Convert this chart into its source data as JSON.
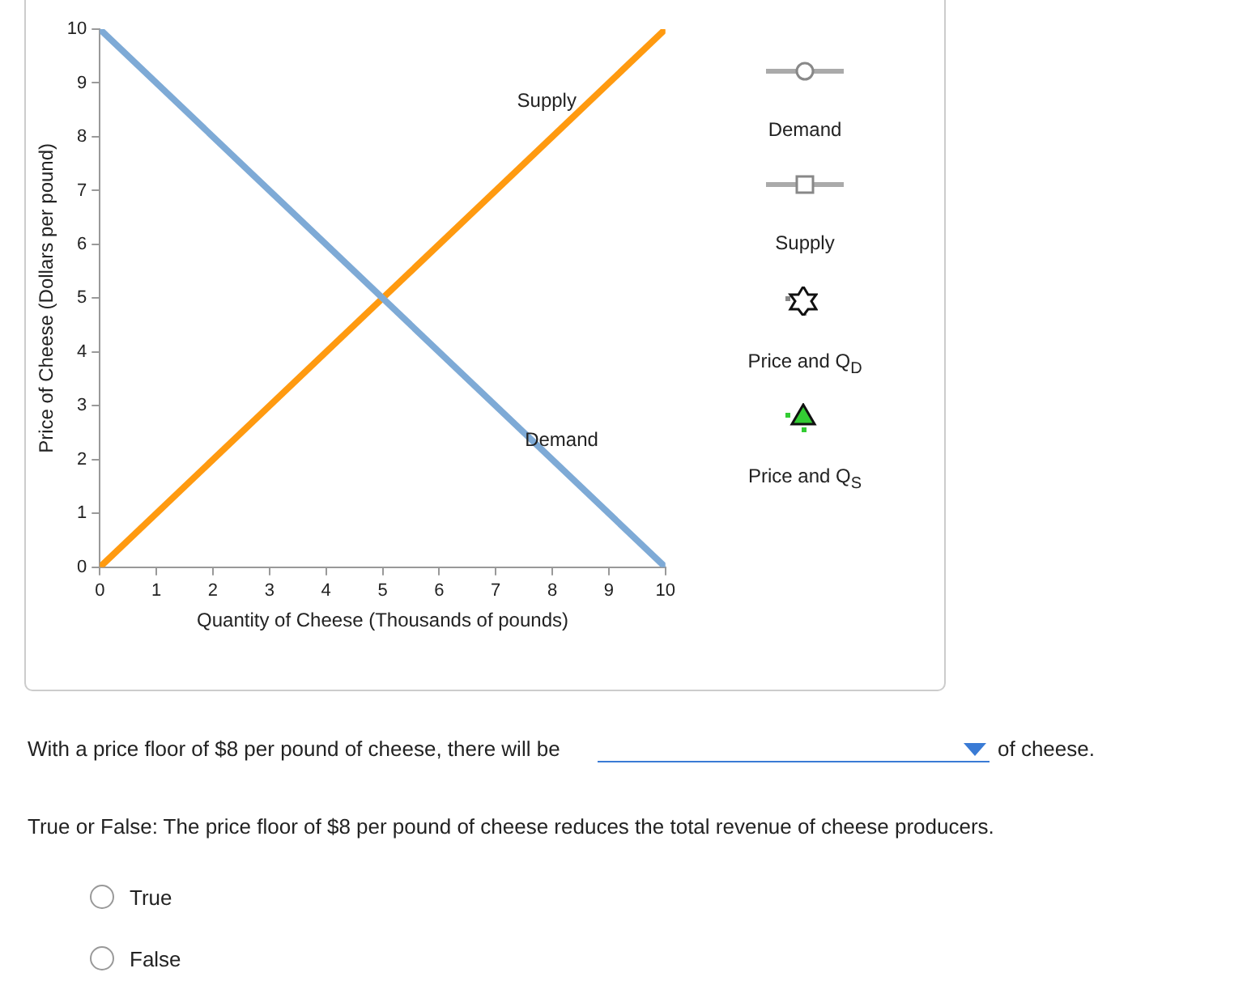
{
  "chart_data": {
    "type": "line",
    "xlabel": "Quantity of Cheese (Thousands of pounds)",
    "ylabel": "Price of Cheese (Dollars per pound)",
    "x": [
      0,
      10
    ],
    "series": [
      {
        "color": "#7eaad6",
        "values": [
          10,
          0
        ]
      },
      {
        "color": "#ff9a10",
        "values": [
          0,
          10
        ]
      }
    ],
    "xlim": [
      0,
      10
    ],
    "xticks": [
      0,
      1,
      2,
      3,
      4,
      5,
      6,
      7,
      8,
      9,
      10
    ],
    "ylim": [
      0,
      10
    ],
    "yticks": [
      0,
      1,
      2,
      3,
      4,
      5,
      6,
      7,
      8,
      9,
      10
    ],
    "marker": "none",
    "line_style": "solid",
    "legend": false,
    "annotations": [
      {
        "text": "Supply",
        "x": 8.6,
        "y": 8.6
      },
      {
        "text": "Demand",
        "x": 7.4,
        "y": 2.6
      },
      "Demand",
      "Supply",
      "Price and Q$_{D}$",
      "Price and Q$_{S}$",
      "With a price floor of $8 per pound of cheese, there will be",
      "of cheese.",
      "True or False: The price floor of $8 per pound of cheese reduces the total revenue of cheese producers.",
      "True",
      "False"
    ]
  }
}
